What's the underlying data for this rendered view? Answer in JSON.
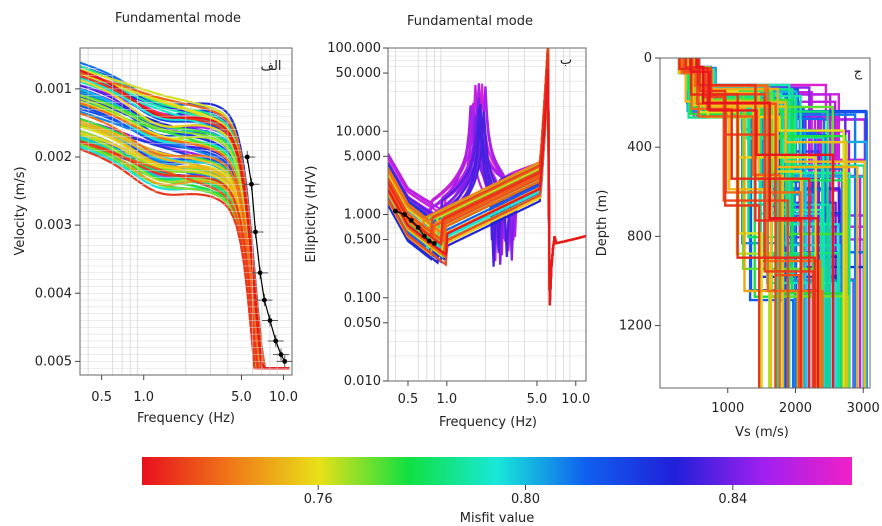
{
  "chart_data": [
    {
      "type": "line",
      "panel_label": "الف",
      "title": "Fundamental mode",
      "xlabel": "Frequency (Hz)",
      "ylabel": "Velocity (m/s)",
      "x_scale": "log",
      "xlim": [
        0.35,
        11.5
      ],
      "ylim": [
        0.0004,
        0.0052
      ],
      "y_inverted": true,
      "x_ticks": [
        {
          "v": 0.5,
          "label": "0.5"
        },
        {
          "v": 1.0,
          "label": "1.0"
        },
        {
          "v": 5.0,
          "label": "5.0"
        },
        {
          "v": 10.0,
          "label": "10.0"
        }
      ],
      "y_ticks": [
        {
          "v": 0.001,
          "label": "0.001"
        },
        {
          "v": 0.002,
          "label": "0.002"
        },
        {
          "v": 0.003,
          "label": "0.003"
        },
        {
          "v": 0.004,
          "label": "0.004"
        },
        {
          "v": 0.005,
          "label": "0.005"
        }
      ],
      "grid": true,
      "observed_points": [
        [
          5.5,
          0.002
        ],
        [
          5.9,
          0.0024
        ],
        [
          6.3,
          0.0031
        ],
        [
          6.8,
          0.0037
        ],
        [
          7.3,
          0.0041
        ],
        [
          8.0,
          0.0044
        ],
        [
          8.8,
          0.0047
        ],
        [
          9.6,
          0.0049
        ],
        [
          10.2,
          0.005
        ]
      ]
    },
    {
      "type": "line",
      "panel_label": "ب",
      "title": "Fundamental mode",
      "xlabel": "Frequency (Hz)",
      "ylabel": "Ellipticity (H/V)",
      "x_scale": "log",
      "y_scale": "log",
      "xlim": [
        0.35,
        12
      ],
      "ylim": [
        0.01,
        100
      ],
      "x_ticks": [
        {
          "v": 0.5,
          "label": "0.5"
        },
        {
          "v": 1.0,
          "label": "1.0"
        },
        {
          "v": 5.0,
          "label": "5.0"
        },
        {
          "v": 10.0,
          "label": "10.0"
        }
      ],
      "y_ticks": [
        {
          "v": 0.01,
          "label": "0.010"
        },
        {
          "v": 0.05,
          "label": "0.050"
        },
        {
          "v": 0.1,
          "label": "0.100"
        },
        {
          "v": 0.5,
          "label": "0.500"
        },
        {
          "v": 1,
          "label": "1.000"
        },
        {
          "v": 5,
          "label": "5.000"
        },
        {
          "v": 10,
          "label": "10.000"
        },
        {
          "v": 50,
          "label": "50.000"
        },
        {
          "v": 100,
          "label": "100.000"
        }
      ],
      "grid": true,
      "observed_points": [
        [
          0.4,
          1.1
        ],
        [
          0.47,
          1.0
        ],
        [
          0.53,
          0.85
        ],
        [
          0.6,
          0.7
        ],
        [
          0.67,
          0.55
        ],
        [
          0.73,
          0.48
        ],
        [
          0.8,
          0.45
        ]
      ]
    },
    {
      "type": "line",
      "panel_label": "ج",
      "title": "",
      "xlabel": "Vs (m/s)",
      "ylabel": "Depth (m)",
      "xlim": [
        0,
        3100
      ],
      "ylim": [
        0,
        1480
      ],
      "y_inverted": true,
      "x_ticks": [
        {
          "v": 1000,
          "label": "1000"
        },
        {
          "v": 2000,
          "label": "2000"
        },
        {
          "v": 3000,
          "label": "3000"
        }
      ],
      "y_ticks": [
        {
          "v": 0,
          "label": "0"
        },
        {
          "v": 400,
          "label": "400"
        },
        {
          "v": 800,
          "label": "800"
        },
        {
          "v": 1200,
          "label": "1200"
        }
      ],
      "grid": false
    }
  ],
  "colorbar": {
    "label": "Misfit value",
    "range": [
      0.726,
      0.863
    ],
    "ticks": [
      {
        "v": 0.76,
        "label": "0.76"
      },
      {
        "v": 0.8,
        "label": "0.80"
      },
      {
        "v": 0.84,
        "label": "0.84"
      }
    ],
    "colors": [
      "#e8101e",
      "#f07818",
      "#e8e018",
      "#10e040",
      "#18e8d8",
      "#1060f0",
      "#2020d8",
      "#a020f0",
      "#f020c8"
    ]
  }
}
